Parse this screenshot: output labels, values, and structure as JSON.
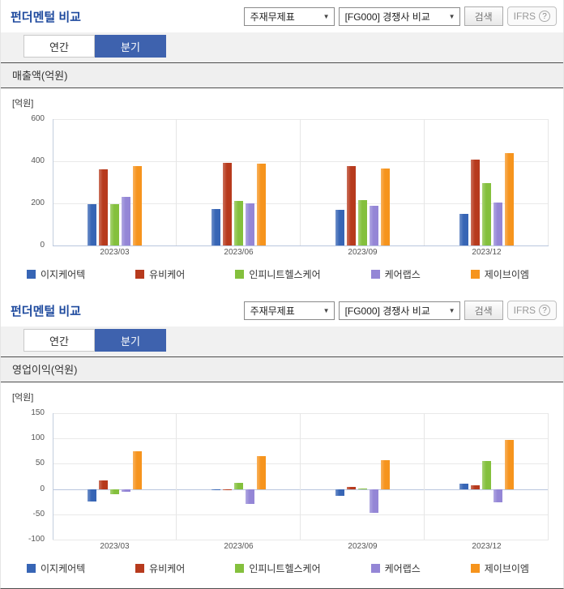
{
  "chart_data": [
    {
      "type": "bar",
      "title": "매출액(억원)",
      "unit_label": "[억원]",
      "categories": [
        "2023/03",
        "2023/06",
        "2023/09",
        "2023/12"
      ],
      "series": [
        {
          "name": "이지케어텍",
          "color": "#3765b5",
          "values": [
            196,
            173,
            169,
            150
          ]
        },
        {
          "name": "유비케어",
          "color": "#b73a1d",
          "values": [
            361,
            392,
            378,
            408
          ]
        },
        {
          "name": "인피니트헬스케어",
          "color": "#84c03d",
          "values": [
            196,
            211,
            215,
            296
          ]
        },
        {
          "name": "케어랩스",
          "color": "#9486d6",
          "values": [
            230,
            200,
            188,
            204
          ]
        },
        {
          "name": "제이브이엠",
          "color": "#f6941d",
          "values": [
            377,
            388,
            367,
            438
          ]
        }
      ],
      "ylim": [
        0,
        600
      ],
      "yticks": [
        600,
        400,
        200,
        0
      ],
      "grid": true,
      "legend_position": "bottom"
    },
    {
      "type": "bar",
      "title": "영업이익(억원)",
      "unit_label": "[억원]",
      "categories": [
        "2023/03",
        "2023/06",
        "2023/09",
        "2023/12"
      ],
      "series": [
        {
          "name": "이지케어텍",
          "color": "#3765b5",
          "values": [
            -24,
            -3,
            -14,
            11
          ]
        },
        {
          "name": "유비케어",
          "color": "#b73a1d",
          "values": [
            17,
            -3,
            4,
            8
          ]
        },
        {
          "name": "인피니트헬스케어",
          "color": "#84c03d",
          "values": [
            -11,
            12,
            1,
            55
          ]
        },
        {
          "name": "케어랩스",
          "color": "#9486d6",
          "values": [
            -6,
            -29,
            -47,
            -27
          ]
        },
        {
          "name": "제이브이엠",
          "color": "#f6941d",
          "values": [
            75,
            65,
            57,
            97
          ]
        }
      ],
      "ylim": [
        -100,
        150
      ],
      "yticks": [
        150,
        100,
        50,
        0,
        -50,
        -100
      ],
      "grid": true,
      "legend_position": "bottom"
    }
  ],
  "panels": [
    {
      "title": "펀더멘털 비교",
      "controls": {
        "statement_select": "주재무제표",
        "compare_select": "[FG000] 경쟁사 비교",
        "search_button": "검색",
        "ifrs_button": "IFRS",
        "ifrs_help": "?"
      },
      "tabs": [
        {
          "label": "연간",
          "selected": false
        },
        {
          "label": "분기",
          "selected": true
        }
      ],
      "section_title": "매출액(억원)"
    },
    {
      "title": "펀더멘털 비교",
      "controls": {
        "statement_select": "주재무제표",
        "compare_select": "[FG000] 경쟁사 비교",
        "search_button": "검색",
        "ifrs_button": "IFRS",
        "ifrs_help": "?"
      },
      "tabs": [
        {
          "label": "연간",
          "selected": false
        },
        {
          "label": "분기",
          "selected": true
        }
      ],
      "section_title": "영업이익(억원)"
    }
  ]
}
